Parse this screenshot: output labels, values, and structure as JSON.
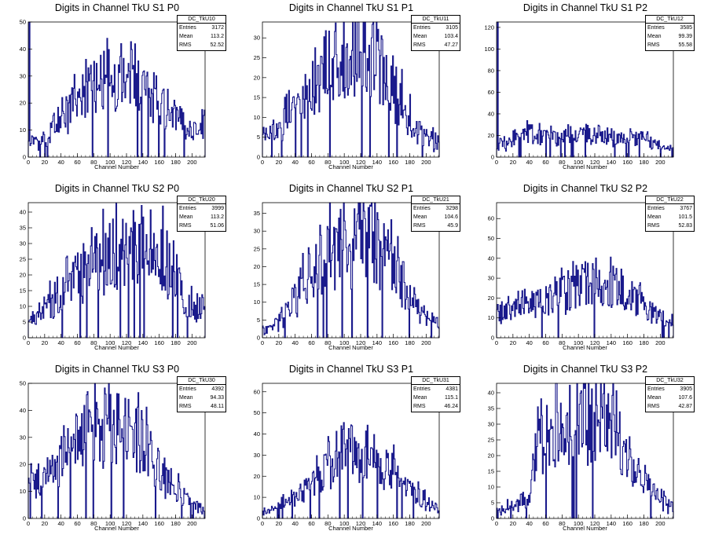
{
  "chart_data": [
    {
      "type": "histogram",
      "title": "Digits in Channel TkU S1 P0",
      "xlabel": "Channel Number",
      "ylabel": "",
      "xlim": [
        0,
        216
      ],
      "ylim": [
        0,
        50
      ],
      "x_ticks": [
        0,
        20,
        40,
        60,
        80,
        100,
        120,
        140,
        160,
        180,
        200
      ],
      "y_ticks": [
        0,
        10,
        20,
        30,
        40,
        50
      ],
      "stats": {
        "name": "DC_TkU10",
        "entries": "3172",
        "mean": "113.2",
        "rms": "52.52"
      },
      "peak_bins": [
        {
          "x": 1,
          "y": 50
        }
      ],
      "profile": {
        "x": [
          0,
          10,
          20,
          40,
          60,
          80,
          100,
          120,
          140,
          160,
          180,
          200,
          216
        ],
        "y": [
          8,
          5,
          6,
          15,
          20,
          25,
          28,
          30,
          28,
          20,
          15,
          10,
          14
        ]
      }
    },
    {
      "type": "histogram",
      "title": "Digits in Channel TkU S1 P1",
      "xlabel": "Channel Number",
      "ylabel": "",
      "xlim": [
        0,
        216
      ],
      "ylim": [
        0,
        34
      ],
      "x_ticks": [
        0,
        20,
        40,
        60,
        80,
        100,
        120,
        140,
        160,
        180,
        200
      ],
      "y_ticks": [
        0,
        5,
        10,
        15,
        20,
        25,
        30
      ],
      "stats": {
        "name": "DC_TkU11",
        "entries": "3105",
        "mean": "103.4",
        "rms": "47.27"
      },
      "peak_bins": [],
      "profile": {
        "x": [
          0,
          10,
          20,
          40,
          60,
          80,
          100,
          120,
          140,
          160,
          180,
          200,
          216
        ],
        "y": [
          6,
          6,
          8,
          12,
          18,
          24,
          26,
          26,
          24,
          18,
          10,
          5,
          4
        ]
      }
    },
    {
      "type": "histogram",
      "title": "Digits in Channel TkU S1 P2",
      "xlabel": "Channel Number",
      "ylabel": "",
      "xlim": [
        0,
        216
      ],
      "ylim": [
        0,
        125
      ],
      "x_ticks": [
        0,
        20,
        40,
        60,
        80,
        100,
        120,
        140,
        160,
        180,
        200
      ],
      "y_ticks": [
        0,
        20,
        40,
        60,
        80,
        100,
        120
      ],
      "stats": {
        "name": "DC_TkU12",
        "entries": "3585",
        "mean": "99.39",
        "rms": "55.58"
      },
      "peak_bins": [
        {
          "x": 1,
          "y": 125
        }
      ],
      "profile": {
        "x": [
          0,
          10,
          20,
          40,
          60,
          80,
          100,
          120,
          140,
          160,
          180,
          200,
          216
        ],
        "y": [
          10,
          12,
          15,
          22,
          18,
          18,
          20,
          22,
          20,
          18,
          16,
          10,
          6
        ]
      }
    },
    {
      "type": "histogram",
      "title": "Digits in Channel TkU S2 P0",
      "xlabel": "Channel Number",
      "ylabel": "",
      "xlim": [
        0,
        216
      ],
      "ylim": [
        0,
        43
      ],
      "x_ticks": [
        0,
        20,
        40,
        60,
        80,
        100,
        120,
        140,
        160,
        180,
        200
      ],
      "y_ticks": [
        0,
        5,
        10,
        15,
        20,
        25,
        30,
        35,
        40
      ],
      "stats": {
        "name": "DC_TkU20",
        "entries": "3999",
        "mean": "113.2",
        "rms": "51.06"
      },
      "peak_bins": [],
      "profile": {
        "x": [
          0,
          10,
          20,
          40,
          60,
          80,
          100,
          120,
          140,
          160,
          180,
          200,
          216
        ],
        "y": [
          6,
          6,
          10,
          14,
          20,
          25,
          26,
          28,
          30,
          28,
          20,
          10,
          10
        ]
      }
    },
    {
      "type": "histogram",
      "title": "Digits in Channel TkU S2 P1",
      "xlabel": "Channel Number",
      "ylabel": "",
      "xlim": [
        0,
        216
      ],
      "ylim": [
        0,
        38
      ],
      "x_ticks": [
        0,
        20,
        40,
        60,
        80,
        100,
        120,
        140,
        160,
        180,
        200
      ],
      "y_ticks": [
        0,
        5,
        10,
        15,
        20,
        25,
        30,
        35
      ],
      "stats": {
        "name": "DC_TkU21",
        "entries": "3298",
        "mean": "104.6",
        "rms": "45.9"
      },
      "peak_bins": [],
      "profile": {
        "x": [
          0,
          10,
          20,
          40,
          60,
          80,
          100,
          120,
          140,
          160,
          180,
          200,
          216
        ],
        "y": [
          3,
          3,
          5,
          12,
          18,
          24,
          26,
          28,
          26,
          20,
          12,
          6,
          3
        ]
      }
    },
    {
      "type": "histogram",
      "title": "Digits in Channel TkU S2 P2",
      "xlabel": "Channel Number",
      "ylabel": "",
      "xlim": [
        0,
        216
      ],
      "ylim": [
        0,
        68
      ],
      "x_ticks": [
        0,
        20,
        40,
        60,
        80,
        100,
        120,
        140,
        160,
        180,
        200
      ],
      "y_ticks": [
        0,
        10,
        20,
        30,
        40,
        50,
        60
      ],
      "stats": {
        "name": "DC_TkU22",
        "entries": "3767",
        "mean": "101.5",
        "rms": "52.83"
      },
      "peak_bins": [],
      "profile": {
        "x": [
          0,
          10,
          20,
          40,
          60,
          80,
          100,
          120,
          140,
          160,
          180,
          200,
          216
        ],
        "y": [
          12,
          14,
          16,
          18,
          20,
          22,
          25,
          28,
          28,
          22,
          16,
          10,
          8
        ]
      }
    },
    {
      "type": "histogram",
      "title": "Digits in Channel TkU S3 P0",
      "xlabel": "Channel Number",
      "ylabel": "",
      "xlim": [
        0,
        216
      ],
      "ylim": [
        0,
        50
      ],
      "x_ticks": [
        0,
        20,
        40,
        60,
        80,
        100,
        120,
        140,
        160,
        180,
        200
      ],
      "y_ticks": [
        0,
        10,
        20,
        30,
        40,
        50
      ],
      "stats": {
        "name": "DC_TkU30",
        "entries": "4392",
        "mean": "94.33",
        "rms": "48.11"
      },
      "peak_bins": [],
      "profile": {
        "x": [
          0,
          10,
          20,
          40,
          60,
          80,
          100,
          120,
          140,
          160,
          180,
          200,
          216
        ],
        "y": [
          14,
          14,
          16,
          22,
          30,
          34,
          34,
          32,
          28,
          18,
          12,
          6,
          4
        ]
      }
    },
    {
      "type": "histogram",
      "title": "Digits in Channel TkU S3 P1",
      "xlabel": "Channel Number",
      "ylabel": "",
      "xlim": [
        0,
        216
      ],
      "ylim": [
        0,
        64
      ],
      "x_ticks": [
        0,
        20,
        40,
        60,
        80,
        100,
        120,
        140,
        160,
        180,
        200
      ],
      "y_ticks": [
        0,
        10,
        20,
        30,
        40,
        50,
        60
      ],
      "stats": {
        "name": "DC_TkU31",
        "entries": "4381",
        "mean": "115.1",
        "rms": "46.24"
      },
      "peak_bins": [],
      "profile": {
        "x": [
          0,
          10,
          20,
          40,
          60,
          80,
          100,
          120,
          140,
          160,
          180,
          200,
          216
        ],
        "y": [
          3,
          4,
          6,
          10,
          16,
          24,
          34,
          32,
          28,
          22,
          14,
          8,
          4
        ]
      }
    },
    {
      "type": "histogram",
      "title": "Digits in Channel TkU S3 P2",
      "xlabel": "Channel Number",
      "ylabel": "",
      "xlim": [
        0,
        216
      ],
      "ylim": [
        0,
        43
      ],
      "x_ticks": [
        0,
        20,
        40,
        60,
        80,
        100,
        120,
        140,
        160,
        180,
        200
      ],
      "y_ticks": [
        0,
        5,
        10,
        15,
        20,
        25,
        30,
        35,
        40
      ],
      "stats": {
        "name": "DC_TkU32",
        "entries": "3905",
        "mean": "107.6",
        "rms": "42.87"
      },
      "peak_bins": [],
      "profile": {
        "x": [
          0,
          10,
          20,
          40,
          45,
          60,
          80,
          100,
          120,
          140,
          160,
          180,
          200,
          216
        ],
        "y": [
          2,
          3,
          4,
          6,
          20,
          26,
          30,
          32,
          32,
          28,
          20,
          12,
          6,
          4
        ]
      }
    }
  ],
  "labels": {
    "entries": "Entries",
    "mean": "Mean",
    "rms": "RMS"
  },
  "colors": {
    "line": "#1a1a8c",
    "axis": "#000000"
  }
}
